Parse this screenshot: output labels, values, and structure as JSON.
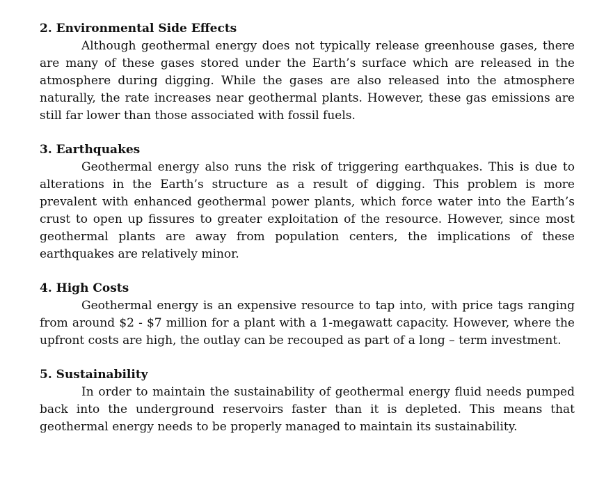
{
  "sections": [
    {
      "heading": "2. Environmental Side Effects",
      "body": "Although geothermal energy does not typically release greenhouse gases, there are many of these gases stored under the Earth’s surface which are released in the atmosphere during digging. While the gases are also released into the atmosphere naturally, the rate increases near geothermal plants. However, these gas emissions are still far lower than those associated with fossil fuels."
    },
    {
      "heading": "3. Earthquakes",
      "body": "Geothermal energy also runs the risk of triggering earthquakes. This is due to alterations in the Earth’s structure as a result of digging. This problem is more prevalent with enhanced geothermal power plants, which force water into the Earth’s crust to open up fissures to greater exploitation of the resource. However, since most geothermal plants are away from population centers, the implications of these earthquakes are relatively minor."
    },
    {
      "heading": "4. High Costs",
      "body": "Geothermal energy is an expensive resource to tap into, with price tags ranging from around $2 - $7 million for a plant with a 1-megawatt capacity. However, where the upfront costs are high, the outlay can be recouped as part of a long – term investment."
    },
    {
      "heading": "5. Sustainability",
      "body": "In order to maintain the sustainability of geothermal energy fluid needs pumped back into the underground reservoirs faster than it is depleted. This means that geothermal energy needs to be properly managed to maintain its sustainability."
    }
  ]
}
